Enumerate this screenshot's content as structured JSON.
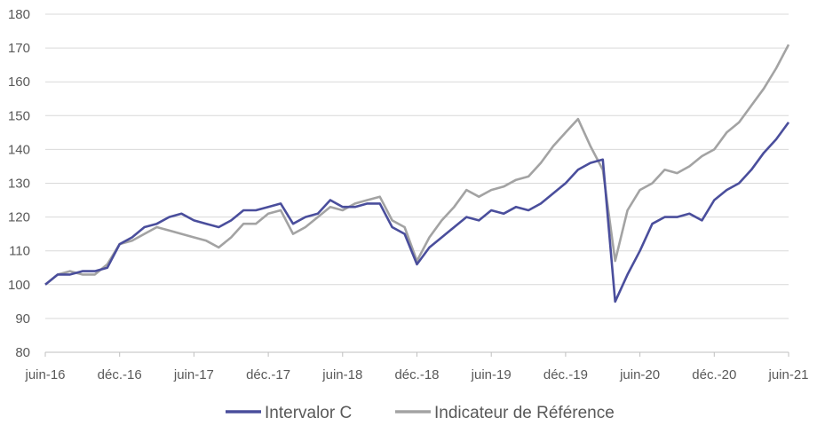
{
  "chart_data": {
    "type": "line",
    "title": "",
    "xlabel": "",
    "ylabel": "",
    "ylim": [
      80,
      180
    ],
    "yticks": [
      80,
      90,
      100,
      110,
      120,
      130,
      140,
      150,
      160,
      170,
      180
    ],
    "xticks": [
      "juin-16",
      "déc.-16",
      "juin-17",
      "déc.-17",
      "juin-18",
      "déc.-18",
      "juin-19",
      "déc.-19",
      "juin-20",
      "déc.-20",
      "juin-21"
    ],
    "grid": "horizontal",
    "legend_position": "bottom",
    "colors": {
      "series1": "#4a4e9c",
      "series2": "#a3a3a3",
      "grid": "#d9d9d9",
      "axis": "#bfbfbf"
    },
    "x": [
      "2016-06",
      "2016-07",
      "2016-08",
      "2016-09",
      "2016-10",
      "2016-11",
      "2016-12",
      "2017-01",
      "2017-02",
      "2017-03",
      "2017-04",
      "2017-05",
      "2017-06",
      "2017-07",
      "2017-08",
      "2017-09",
      "2017-10",
      "2017-11",
      "2017-12",
      "2018-01",
      "2018-02",
      "2018-03",
      "2018-04",
      "2018-05",
      "2018-06",
      "2018-07",
      "2018-08",
      "2018-09",
      "2018-10",
      "2018-11",
      "2018-12",
      "2019-01",
      "2019-02",
      "2019-03",
      "2019-04",
      "2019-05",
      "2019-06",
      "2019-07",
      "2019-08",
      "2019-09",
      "2019-10",
      "2019-11",
      "2019-12",
      "2020-01",
      "2020-02",
      "2020-03",
      "2020-04",
      "2020-05",
      "2020-06",
      "2020-07",
      "2020-08",
      "2020-09",
      "2020-10",
      "2020-11",
      "2020-12",
      "2021-01",
      "2021-02",
      "2021-03",
      "2021-04",
      "2021-05",
      "2021-06"
    ],
    "series": [
      {
        "name": "Intervalor C",
        "values": [
          100,
          103,
          103,
          104,
          104,
          105,
          112,
          114,
          117,
          118,
          120,
          121,
          119,
          118,
          117,
          119,
          122,
          122,
          123,
          124,
          118,
          120,
          121,
          125,
          123,
          123,
          124,
          124,
          117,
          115,
          106,
          111,
          114,
          117,
          120,
          119,
          122,
          121,
          123,
          122,
          124,
          127,
          130,
          134,
          136,
          137,
          95,
          103,
          110,
          118,
          120,
          120,
          121,
          119,
          125,
          128,
          130,
          134,
          139,
          143,
          148
        ]
      },
      {
        "name": "Indicateur de Référence",
        "values": [
          100,
          103,
          104,
          103,
          103,
          106,
          112,
          113,
          115,
          117,
          116,
          115,
          114,
          113,
          111,
          114,
          118,
          118,
          121,
          122,
          115,
          117,
          120,
          123,
          122,
          124,
          125,
          126,
          119,
          117,
          107,
          114,
          119,
          123,
          128,
          126,
          128,
          129,
          131,
          132,
          136,
          141,
          145,
          149,
          141,
          134,
          107,
          122,
          128,
          130,
          134,
          133,
          135,
          138,
          140,
          145,
          148,
          153,
          158,
          164,
          171
        ]
      }
    ]
  }
}
